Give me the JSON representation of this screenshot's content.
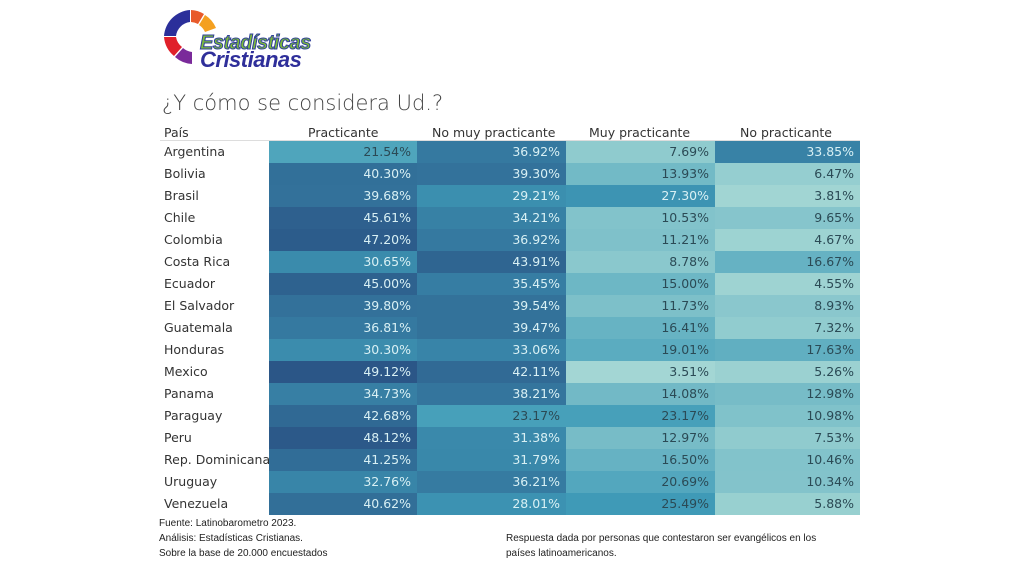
{
  "logo": {
    "line1": "Estadísticas",
    "line2": "Cristianas"
  },
  "chart_data": {
    "type": "heatmap",
    "title": "¿Y cómo se considera Ud.?",
    "row_header": "País",
    "columns": [
      "Practicante",
      "No muy practicante",
      "Muy practicante",
      "No practicante"
    ],
    "rows": [
      {
        "country": "Argentina",
        "values": [
          "21.54%",
          "36.92%",
          "7.69%",
          "33.85%"
        ]
      },
      {
        "country": "Bolivia",
        "values": [
          "40.30%",
          "39.30%",
          "13.93%",
          "6.47%"
        ]
      },
      {
        "country": "Brasil",
        "values": [
          "39.68%",
          "29.21%",
          "27.30%",
          "3.81%"
        ]
      },
      {
        "country": "Chile",
        "values": [
          "45.61%",
          "34.21%",
          "10.53%",
          "9.65%"
        ]
      },
      {
        "country": "Colombia",
        "values": [
          "47.20%",
          "36.92%",
          "11.21%",
          "4.67%"
        ]
      },
      {
        "country": "Costa Rica",
        "values": [
          "30.65%",
          "43.91%",
          "8.78%",
          "16.67%"
        ]
      },
      {
        "country": "Ecuador",
        "values": [
          "45.00%",
          "35.45%",
          "15.00%",
          "4.55%"
        ]
      },
      {
        "country": "El Salvador",
        "values": [
          "39.80%",
          "39.54%",
          "11.73%",
          "8.93%"
        ]
      },
      {
        "country": "Guatemala",
        "values": [
          "36.81%",
          "39.47%",
          "16.41%",
          "7.32%"
        ]
      },
      {
        "country": "Honduras",
        "values": [
          "30.30%",
          "33.06%",
          "19.01%",
          "17.63%"
        ]
      },
      {
        "country": "Mexico",
        "values": [
          "49.12%",
          "42.11%",
          "3.51%",
          "5.26%"
        ]
      },
      {
        "country": "Panama",
        "values": [
          "34.73%",
          "38.21%",
          "14.08%",
          "12.98%"
        ]
      },
      {
        "country": "Paraguay",
        "values": [
          "42.68%",
          "23.17%",
          "23.17%",
          "10.98%"
        ]
      },
      {
        "country": "Peru",
        "values": [
          "48.12%",
          "31.38%",
          "12.97%",
          "7.53%"
        ]
      },
      {
        "country": "Rep. Dominicana",
        "values": [
          "41.25%",
          "31.79%",
          "16.50%",
          "10.46%"
        ]
      },
      {
        "country": "Uruguay",
        "values": [
          "32.76%",
          "36.21%",
          "20.69%",
          "10.34%"
        ]
      },
      {
        "country": "Venezuela",
        "values": [
          "40.62%",
          "28.01%",
          "25.49%",
          "5.88%"
        ]
      }
    ],
    "color_scale": {
      "low": "#b3e0d8",
      "mid": "#3f9bb8",
      "high": "#2a5485",
      "domain": [
        0,
        50
      ]
    }
  },
  "footer": {
    "source": "Fuente: Latinobarometro 2023.",
    "analysis": "Análisis: Estadísticas Cristianas.",
    "base": "Sobre la base de 20.000 encuestados",
    "note_line1": "Respuesta dada por personas que contestaron ser evangélicos en los",
    "note_line2": "países latinoamericanos."
  }
}
